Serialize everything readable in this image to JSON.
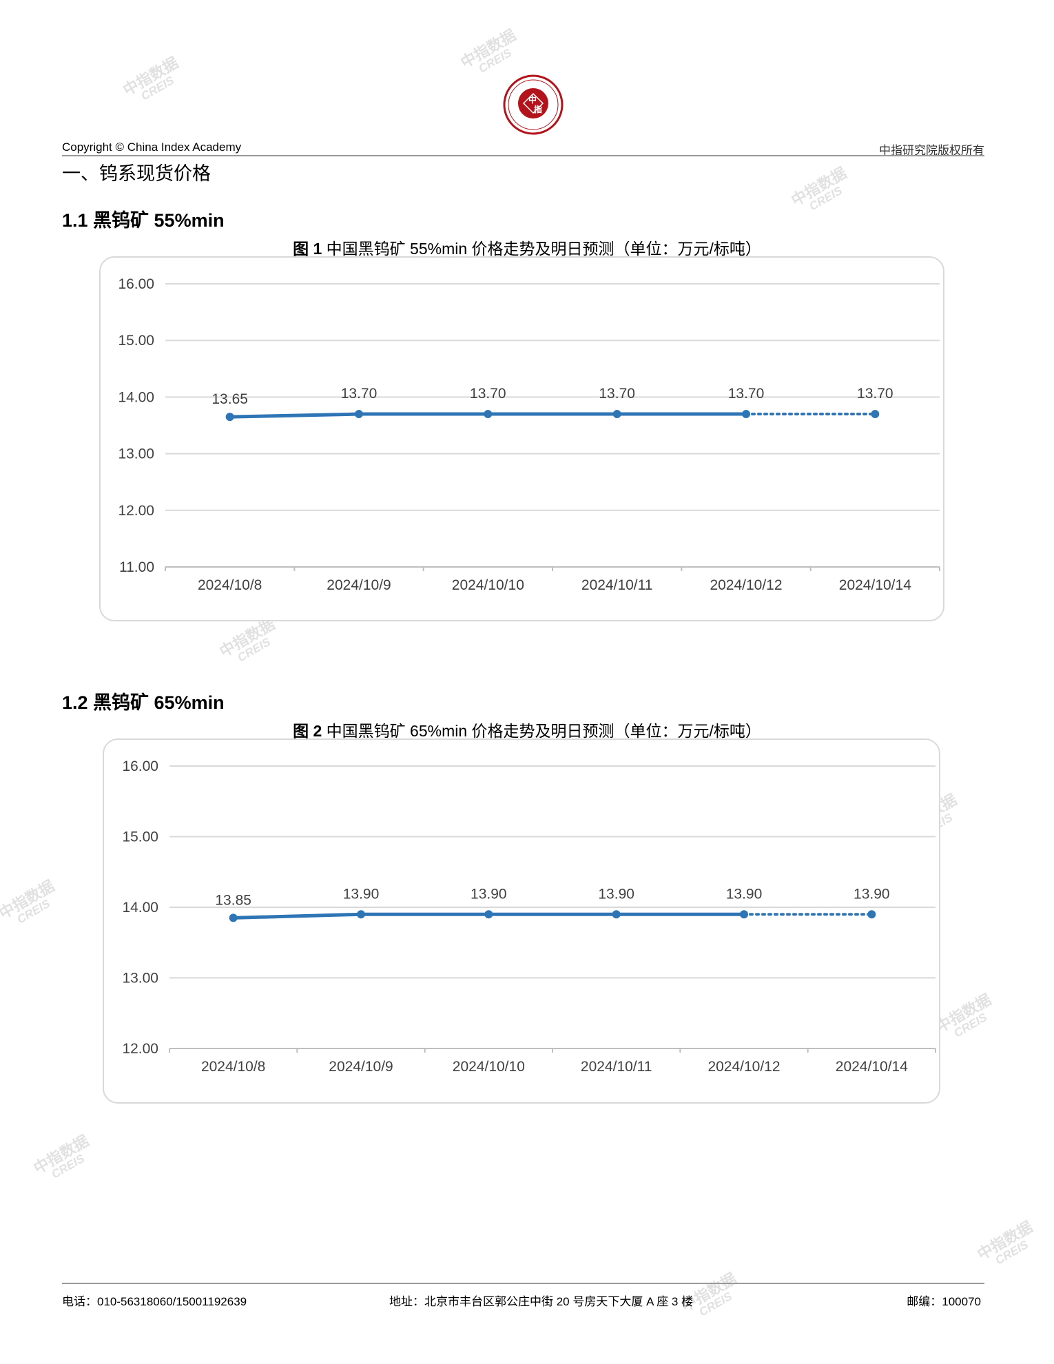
{
  "header": {
    "copyright": "Copyright © China Index Academy",
    "rights": "中指研究院版权所有",
    "logo_text": "CHINA INDEX ACADEMY 中指 研究院"
  },
  "section_title": "一、钨系现货价格",
  "watermark": {
    "cn": "中指数据",
    "en": "CREIS"
  },
  "sections": [
    {
      "heading": "1.1 黑钨矿 55%min",
      "chart_title_prefix": "图 1",
      "chart_title": "中国黑钨矿 55%min 价格走势及明日预测（单位：万元/标吨）"
    },
    {
      "heading": "1.2 黑钨矿 65%min",
      "chart_title_prefix": "图 2",
      "chart_title": "中国黑钨矿 65%min 价格走势及明日预测（单位：万元/标吨）"
    }
  ],
  "chart_data": [
    {
      "type": "line",
      "categories": [
        "2024/10/8",
        "2024/10/9",
        "2024/10/10",
        "2024/10/11",
        "2024/10/12",
        "2024/10/14"
      ],
      "values": [
        13.65,
        13.7,
        13.7,
        13.7,
        13.7,
        13.7
      ],
      "data_labels": [
        "13.65",
        "13.70",
        "13.70",
        "13.70",
        "13.70",
        "13.70"
      ],
      "forecast_from_index": 4,
      "ylim": [
        11,
        16
      ],
      "yticks": [
        "16.00",
        "15.00",
        "14.00",
        "13.00",
        "12.00",
        "11.00"
      ],
      "grid": true,
      "color": "#2E75B6"
    },
    {
      "type": "line",
      "categories": [
        "2024/10/8",
        "2024/10/9",
        "2024/10/10",
        "2024/10/11",
        "2024/10/12",
        "2024/10/14"
      ],
      "values": [
        13.85,
        13.9,
        13.9,
        13.9,
        13.9,
        13.9
      ],
      "data_labels": [
        "13.85",
        "13.90",
        "13.90",
        "13.90",
        "13.90",
        "13.90"
      ],
      "forecast_from_index": 4,
      "ylim": [
        12,
        16
      ],
      "yticks": [
        "16.00",
        "15.00",
        "14.00",
        "13.00",
        "12.00"
      ],
      "grid": true,
      "color": "#2E75B6"
    }
  ],
  "footer": {
    "phone": "电话：010-56318060/15001192639",
    "address": "地址：北京市丰台区郭公庄中街 20 号房天下大厦 A 座 3 楼",
    "postcode": "邮编：100070"
  }
}
